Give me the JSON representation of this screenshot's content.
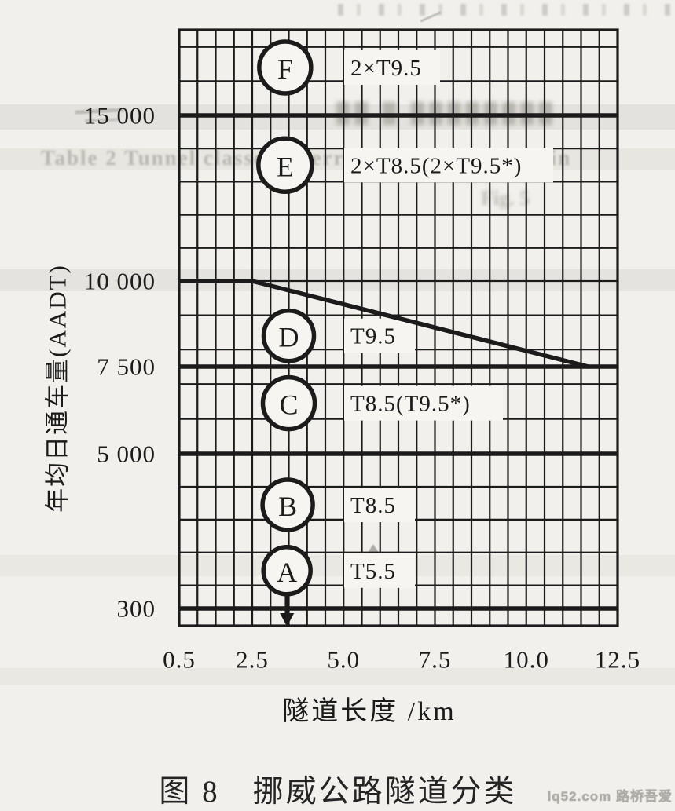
{
  "page": {
    "background": "#f1f0ec",
    "paper_light": "#f6f5f1",
    "ink": "#1b1b1b",
    "caption": "图 8　挪威公路隧道分类",
    "watermark": "lq52.com 路桥吾爱"
  },
  "artifacts": {
    "ghost_line1": "Table 2  Tunnel classes referred to by the circles in",
    "ghost_line2": "Fig. 5",
    "ghost_band": "▉▉ ▉ ▉▉▉▉▉▉▉▉"
  },
  "chart_data": {
    "type": "line",
    "title": "图 8　挪威公路隧道分类",
    "xlabel": "隧道长度 /km",
    "ylabel": "年均日通车量(AADT)",
    "xlim": [
      0.5,
      12.5
    ],
    "ylim": [
      0,
      17500
    ],
    "grid": {
      "x_step_km": 0.5,
      "y_step_aadt": 1000,
      "grid_on": true
    },
    "x_ticks": [
      {
        "value": 0.5,
        "label": "0.5"
      },
      {
        "value": 2.5,
        "label": "2.5"
      },
      {
        "value": 5.0,
        "label": "5.0"
      },
      {
        "value": 7.5,
        "label": "7.5"
      },
      {
        "value": 10.0,
        "label": "10.0"
      },
      {
        "value": 12.5,
        "label": "12.5"
      }
    ],
    "y_ticks": [
      {
        "value": 15000,
        "label": "15 000"
      },
      {
        "value": 10000,
        "label": "10 000"
      },
      {
        "value": 7500,
        "label": "7 500"
      },
      {
        "value": 5000,
        "label": "5 000"
      },
      {
        "value": 300,
        "label": "300"
      }
    ],
    "y_scale_anchors": [
      [
        17500,
        0.0
      ],
      [
        15000,
        0.1436
      ],
      [
        10000,
        0.4216
      ],
      [
        7500,
        0.5652
      ],
      [
        5000,
        0.7115
      ],
      [
        300,
        0.971
      ],
      [
        0,
        1.0
      ]
    ],
    "class_boundaries": [
      {
        "aadt": 15000,
        "from_km": 0.5,
        "to_km": 12.5,
        "thick": true
      },
      {
        "aadt": 10000,
        "from_km": 0.5,
        "to_km": 2.5,
        "thick": true
      },
      {
        "aadt": 10000,
        "from_km": 2.5,
        "to_km": 12.5,
        "thick": false
      },
      {
        "aadt": 7500,
        "from_km": 0.5,
        "to_km": 12.5,
        "thick": true
      },
      {
        "aadt": 5000,
        "from_km": 0.5,
        "to_km": 12.5,
        "thick": true
      },
      {
        "aadt": 300,
        "from_km": 0.5,
        "to_km": 12.5,
        "thick": true
      }
    ],
    "diagonal_boundary": {
      "from": {
        "km": 2.5,
        "aadt": 10000
      },
      "to": {
        "km": 11.7,
        "aadt": 7500
      }
    },
    "tunnel_classes": [
      {
        "letter": "F",
        "profile": "2×T9.5",
        "circle": {
          "km": 3.4,
          "aadt": 16400,
          "r": 33
        }
      },
      {
        "letter": "E",
        "profile": "2×T8.5(2×T9.5*)",
        "circle": {
          "km": 3.4,
          "aadt": 13500,
          "r": 34
        }
      },
      {
        "letter": "D",
        "profile": "T9.5",
        "circle": {
          "km": 3.5,
          "aadt": 8400,
          "r": 32
        }
      },
      {
        "letter": "C",
        "profile": "T8.5(T9.5*)",
        "circle": {
          "km": 3.5,
          "aadt": 6450,
          "r": 33
        }
      },
      {
        "letter": "B",
        "profile": "T8.5",
        "circle": {
          "km": 3.47,
          "aadt": 3450,
          "r": 32
        }
      },
      {
        "letter": "A",
        "profile": "T5.5",
        "arrow_below": true,
        "circle": {
          "km": 3.45,
          "aadt": 1450,
          "r": 30
        }
      }
    ]
  }
}
